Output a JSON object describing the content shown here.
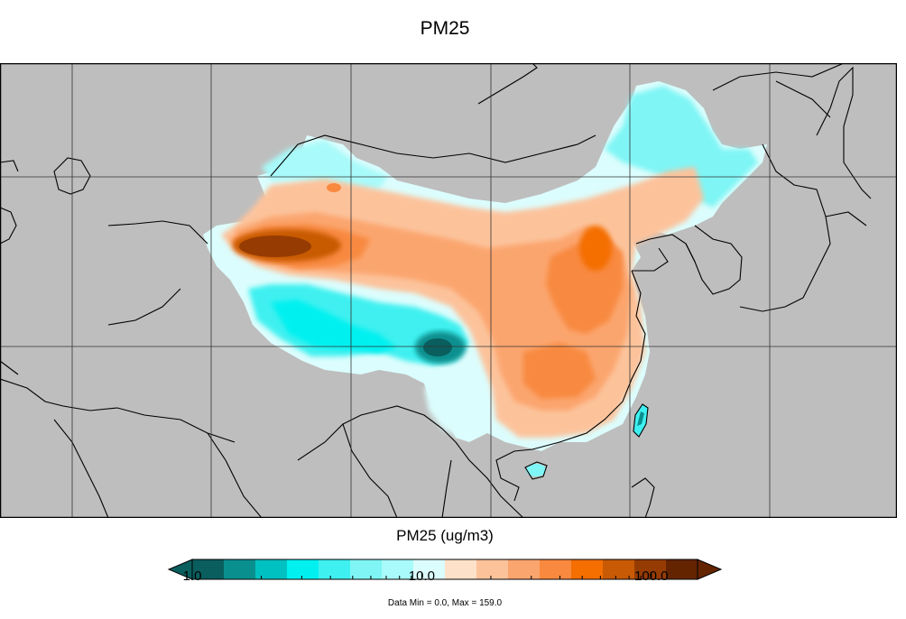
{
  "title": "PM25",
  "map": {
    "background_color": "#bebebe",
    "border_color": "#000000"
  },
  "colorbar": {
    "title": "PM25 (ug/m3)",
    "scale": "log",
    "range": [
      1.0,
      159.0
    ],
    "colors": [
      "#0a5e5e",
      "#0a8f8f",
      "#00c1c1",
      "#00f0f0",
      "#3ff0f0",
      "#7ff5f5",
      "#a9fafa",
      "#dcfdfd",
      "#fde1c8",
      "#fcc39b",
      "#fba56e",
      "#f8893f",
      "#f46e00",
      "#c85a05",
      "#963c03",
      "#642400"
    ],
    "under_color": "#0a5e5e",
    "over_color": "#642400",
    "tick_labels": [
      "1.0",
      "10.0",
      "100.0"
    ],
    "tick_values": [
      1.0,
      10.0,
      100.0
    ]
  },
  "stats_text": "Data Min = 0.0, Max = 159.0"
}
